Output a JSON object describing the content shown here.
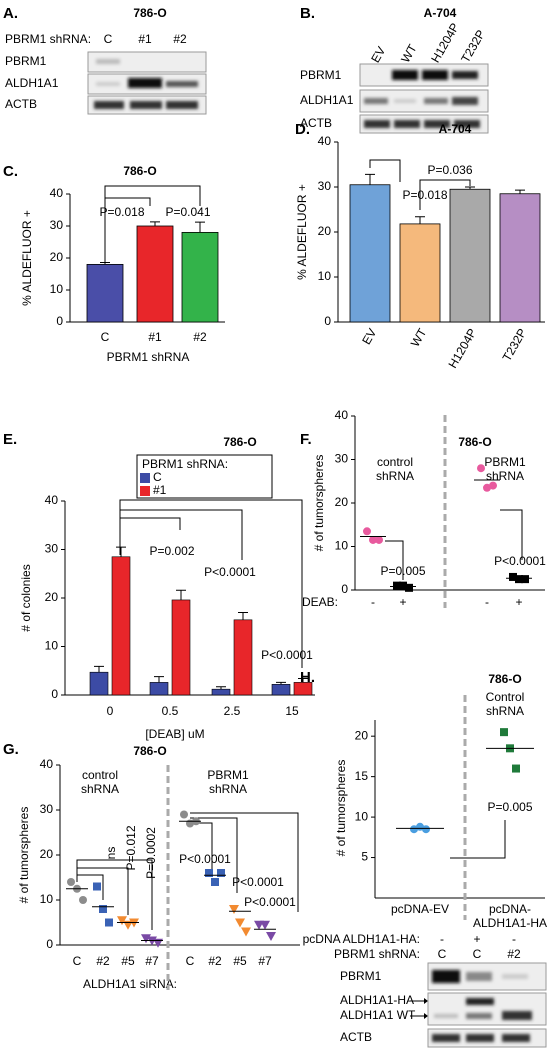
{
  "chart_data": [
    {
      "type": "bar",
      "panel": "C.",
      "title": "786-O",
      "ylabel": "% ALDEFLUOR +",
      "xlabel": "PBRM1 shRNA",
      "categories": [
        "C",
        "#1",
        "#2"
      ],
      "values": [
        18,
        30,
        28
      ],
      "errors": [
        0.6,
        1.3,
        3.2
      ],
      "colors": [
        "#4a4ea8",
        "#e8262a",
        "#33b34a"
      ],
      "ylim": [
        0,
        40
      ],
      "yticks": [
        0,
        10,
        20,
        30,
        40
      ],
      "annotations": [
        "P=0.018",
        "P=0.041"
      ]
    },
    {
      "type": "bar",
      "panel": "D.",
      "title": "A-704",
      "ylabel": "% ALDEFLUOR +",
      "categories": [
        "EV",
        "WT",
        "H1204P",
        "T232P"
      ],
      "values": [
        30.5,
        21.8,
        29.5,
        28.5
      ],
      "errors": [
        2.3,
        1.6,
        0.5,
        0.8
      ],
      "colors": [
        "#6fa2d8",
        "#f5b97c",
        "#a9a9a9",
        "#b68ec4"
      ],
      "ylim": [
        0,
        40
      ],
      "yticks": [
        0,
        10,
        20,
        30,
        40
      ],
      "annotations": [
        "P=0.018",
        "P=0.036"
      ]
    },
    {
      "type": "grouped_bar",
      "panel": "E.",
      "title": "786-O",
      "ylabel": "# of colonies",
      "xlabel": "[DEAB] uM",
      "legend_title": "PBRM1 shRNA:",
      "categories": [
        "0",
        "0.5",
        "2.5",
        "15"
      ],
      "series": [
        {
          "name": "C",
          "color": "#3c4ba5",
          "values": [
            4.7,
            2.6,
            1.2,
            2.2
          ],
          "errors": [
            1.2,
            1.2,
            0.5,
            0.4
          ]
        },
        {
          "name": "#1",
          "color": "#e8262a",
          "values": [
            28.5,
            19.6,
            15.5,
            2.6
          ],
          "errors": [
            2,
            2,
            1.5,
            0.8
          ]
        }
      ],
      "ylim": [
        0,
        40
      ],
      "yticks": [
        0,
        10,
        20,
        30,
        40
      ],
      "annotations": [
        "P=0.002",
        "P<0.0001",
        "P<0.0001"
      ]
    },
    {
      "type": "strip",
      "panel": "F.",
      "title": "786-O",
      "ylabel": "# of tumorspheres",
      "xlabel": "DEAB:",
      "group_labels": [
        "control shRNA",
        "PBRM1 shRNA"
      ],
      "categories": [
        "-",
        "+",
        "-",
        "+"
      ],
      "points": [
        [
          13.5,
          11.5,
          11.5
        ],
        [
          1,
          1,
          0.5
        ],
        [
          28,
          23.5,
          24
        ],
        [
          3,
          2.5,
          2.5
        ]
      ],
      "means": [
        12.3,
        0.8,
        25.3,
        2.7
      ],
      "colors": [
        "#e85a9e",
        "#000000",
        "#e85a9e",
        "#000000"
      ],
      "markers": [
        "circle",
        "square",
        "circle",
        "square"
      ],
      "ylim": [
        0,
        40
      ],
      "yticks": [
        0,
        10,
        20,
        30,
        40
      ],
      "annotations": [
        "P=0.005",
        "P<0.0001"
      ]
    },
    {
      "type": "strip",
      "panel": "G.",
      "title": "786-O",
      "ylabel": "# of tumorspheres",
      "xlabel": "ALDH1A1 siRNA:",
      "group_labels": [
        "control shRNA",
        "PBRM1 shRNA"
      ],
      "categories": [
        "C",
        "#2",
        "#5",
        "#7",
        "C",
        "#2",
        "#5",
        "#7"
      ],
      "points": [
        [
          14,
          12.5,
          10
        ],
        [
          13,
          8,
          5
        ],
        [
          5.5,
          4.5,
          5
        ],
        [
          1.5,
          1,
          0.5
        ],
        [
          29,
          27,
          27.5
        ],
        [
          16,
          14,
          16
        ],
        [
          8,
          5,
          3
        ],
        [
          4.5,
          4.5,
          2
        ]
      ],
      "means": [
        12.5,
        8.5,
        5,
        1,
        27.5,
        15.5,
        7.5,
        3.5
      ],
      "colors": [
        "#8c8c8c",
        "#3a62b5",
        "#f28a30",
        "#7a4aa5",
        "#8c8c8c",
        "#3a62b5",
        "#f28a30",
        "#7a4aa5"
      ],
      "markers": [
        "circle",
        "square",
        "triangle",
        "triangle",
        "circle",
        "square",
        "triangle",
        "triangle"
      ],
      "ylim": [
        0,
        40
      ],
      "yticks": [
        0,
        10,
        20,
        30,
        40
      ],
      "annotations": [
        "ns",
        "P=0.012",
        "P=0.0002",
        "P<0.0001",
        "P<0.0001",
        "P<0.0001"
      ]
    },
    {
      "type": "strip",
      "panel": "H.",
      "title": "786-O",
      "subtitle": "Control shRNA",
      "ylabel": "# of tumorspheres",
      "categories": [
        "pcDNA-EV",
        "pcDNA-ALDH1A1-HA"
      ],
      "points": [
        [
          8.5,
          8.8,
          8.5
        ],
        [
          20.5,
          18.5,
          16
        ]
      ],
      "means": [
        8.6,
        18.5
      ],
      "colors": [
        "#4a9ee0",
        "#1f7a3a"
      ],
      "markers": [
        "circle",
        "square"
      ],
      "ylim": [
        0,
        22
      ],
      "yticks": [
        5,
        10,
        15,
        20
      ],
      "annotations": [
        "P=0.005"
      ]
    }
  ],
  "blots": [
    {
      "panel": "A.",
      "title": "786-O",
      "lane_header": "PBRM1 shRNA:",
      "lanes": [
        "C",
        "#1",
        "#2"
      ],
      "rows": [
        "PBRM1",
        "ALDH1A1",
        "ACTB"
      ]
    },
    {
      "panel": "B.",
      "title": "A-704",
      "lanes": [
        "EV",
        "WT",
        "H1204P",
        "T232P"
      ],
      "rows": [
        "PBRM1",
        "ALDH1A1",
        "ACTB"
      ]
    },
    {
      "lane_headers": [
        "pcDNA ALDH1A1-HA:",
        "PBRM1 shRNA:"
      ],
      "lanes": [
        [
          "-",
          "+",
          "-"
        ],
        [
          "C",
          "C",
          "#2"
        ]
      ],
      "rows": [
        "PBRM1",
        "ALDH1A1-HA",
        "ALDH1A1 WT",
        "ACTB"
      ]
    }
  ]
}
